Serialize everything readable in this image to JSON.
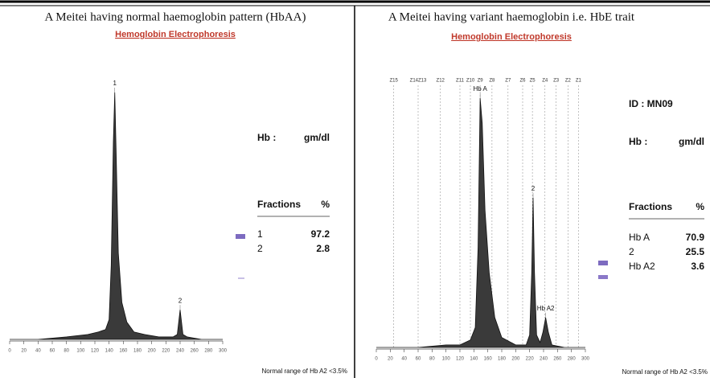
{
  "chart_data": [
    {
      "type": "area",
      "title": "A Meitei having normal haemoglobin pattern (HbAA)",
      "subtitle": "Hemoglobin Electrophoresis",
      "x": [
        0,
        40,
        80,
        110,
        125,
        135,
        140,
        143,
        146,
        148,
        150,
        153,
        158,
        165,
        175,
        190,
        210,
        230,
        236,
        240,
        244,
        250,
        270,
        300
      ],
      "values": [
        0,
        0,
        1,
        2,
        3,
        4,
        8,
        30,
        80,
        100,
        75,
        35,
        15,
        7,
        3,
        2,
        1,
        1,
        2,
        12,
        2,
        1,
        0,
        0
      ],
      "color": "#3a3a3a",
      "xlim": [
        0,
        300
      ],
      "xticks": [
        0,
        20,
        40,
        60,
        80,
        100,
        120,
        140,
        160,
        180,
        200,
        220,
        240,
        260,
        280,
        300
      ],
      "ylim": [
        0,
        100
      ],
      "annotations": [
        {
          "text": "1",
          "x": 148,
          "y": 100
        },
        {
          "text": "2",
          "x": 240,
          "y": 12
        }
      ],
      "hb_label": "Hb :",
      "unit": "gm/dl",
      "fractions_header": [
        "Fractions",
        "%"
      ],
      "fractions": [
        {
          "name": "1",
          "value": 97.2
        },
        {
          "name": "2",
          "value": 2.8
        }
      ],
      "note": "Normal range of Hb A2  <3.5%"
    },
    {
      "type": "area",
      "title": "A Meitei having variant haemoglobin i.e. HbE trait",
      "subtitle": "Hemoglobin Electrophoresis",
      "x": [
        0,
        60,
        100,
        120,
        135,
        142,
        146,
        149,
        152,
        156,
        162,
        170,
        180,
        200,
        215,
        220,
        223,
        225,
        227,
        230,
        235,
        239,
        243,
        247,
        252,
        270,
        300
      ],
      "values": [
        0,
        0,
        1,
        1,
        3,
        8,
        40,
        100,
        90,
        55,
        30,
        12,
        4,
        1,
        1,
        5,
        30,
        60,
        30,
        5,
        2,
        6,
        12,
        6,
        1,
        0,
        0
      ],
      "color": "#3a3a3a",
      "xlim": [
        0,
        300
      ],
      "xticks": [
        0,
        20,
        40,
        60,
        80,
        100,
        120,
        140,
        160,
        180,
        200,
        220,
        240,
        260,
        280,
        300
      ],
      "ylim": [
        0,
        100
      ],
      "zones": [
        {
          "label": "Z15",
          "x": 25
        },
        {
          "label": "Z14Z13",
          "x": 60
        },
        {
          "label": "Z12",
          "x": 92
        },
        {
          "label": "Z11",
          "x": 120
        },
        {
          "label": "Z10",
          "x": 135
        },
        {
          "label": "Z9",
          "x": 149
        },
        {
          "label": "Z8",
          "x": 166
        },
        {
          "label": "Z7",
          "x": 189
        },
        {
          "label": "Z6",
          "x": 210
        },
        {
          "label": "Z5",
          "x": 224
        },
        {
          "label": "Z4",
          "x": 242
        },
        {
          "label": "Z3",
          "x": 258
        },
        {
          "label": "Z2",
          "x": 275
        },
        {
          "label": "Z1",
          "x": 290
        }
      ],
      "annotations": [
        {
          "text": "Hb A",
          "x": 149,
          "y": 100
        },
        {
          "text": "2",
          "x": 225,
          "y": 60
        },
        {
          "text": "Hb A2",
          "x": 243,
          "y": 12
        }
      ],
      "id": "ID : MN09",
      "hb_label": "Hb :",
      "unit": "gm/dl",
      "fractions_header": [
        "Fractions",
        "%"
      ],
      "fractions": [
        {
          "name": "Hb A",
          "value": 70.9
        },
        {
          "name": "2",
          "value": 25.5
        },
        {
          "name": "Hb A2",
          "value": 3.6
        }
      ],
      "note": "Normal range of Hb A2  <3.5%"
    }
  ]
}
